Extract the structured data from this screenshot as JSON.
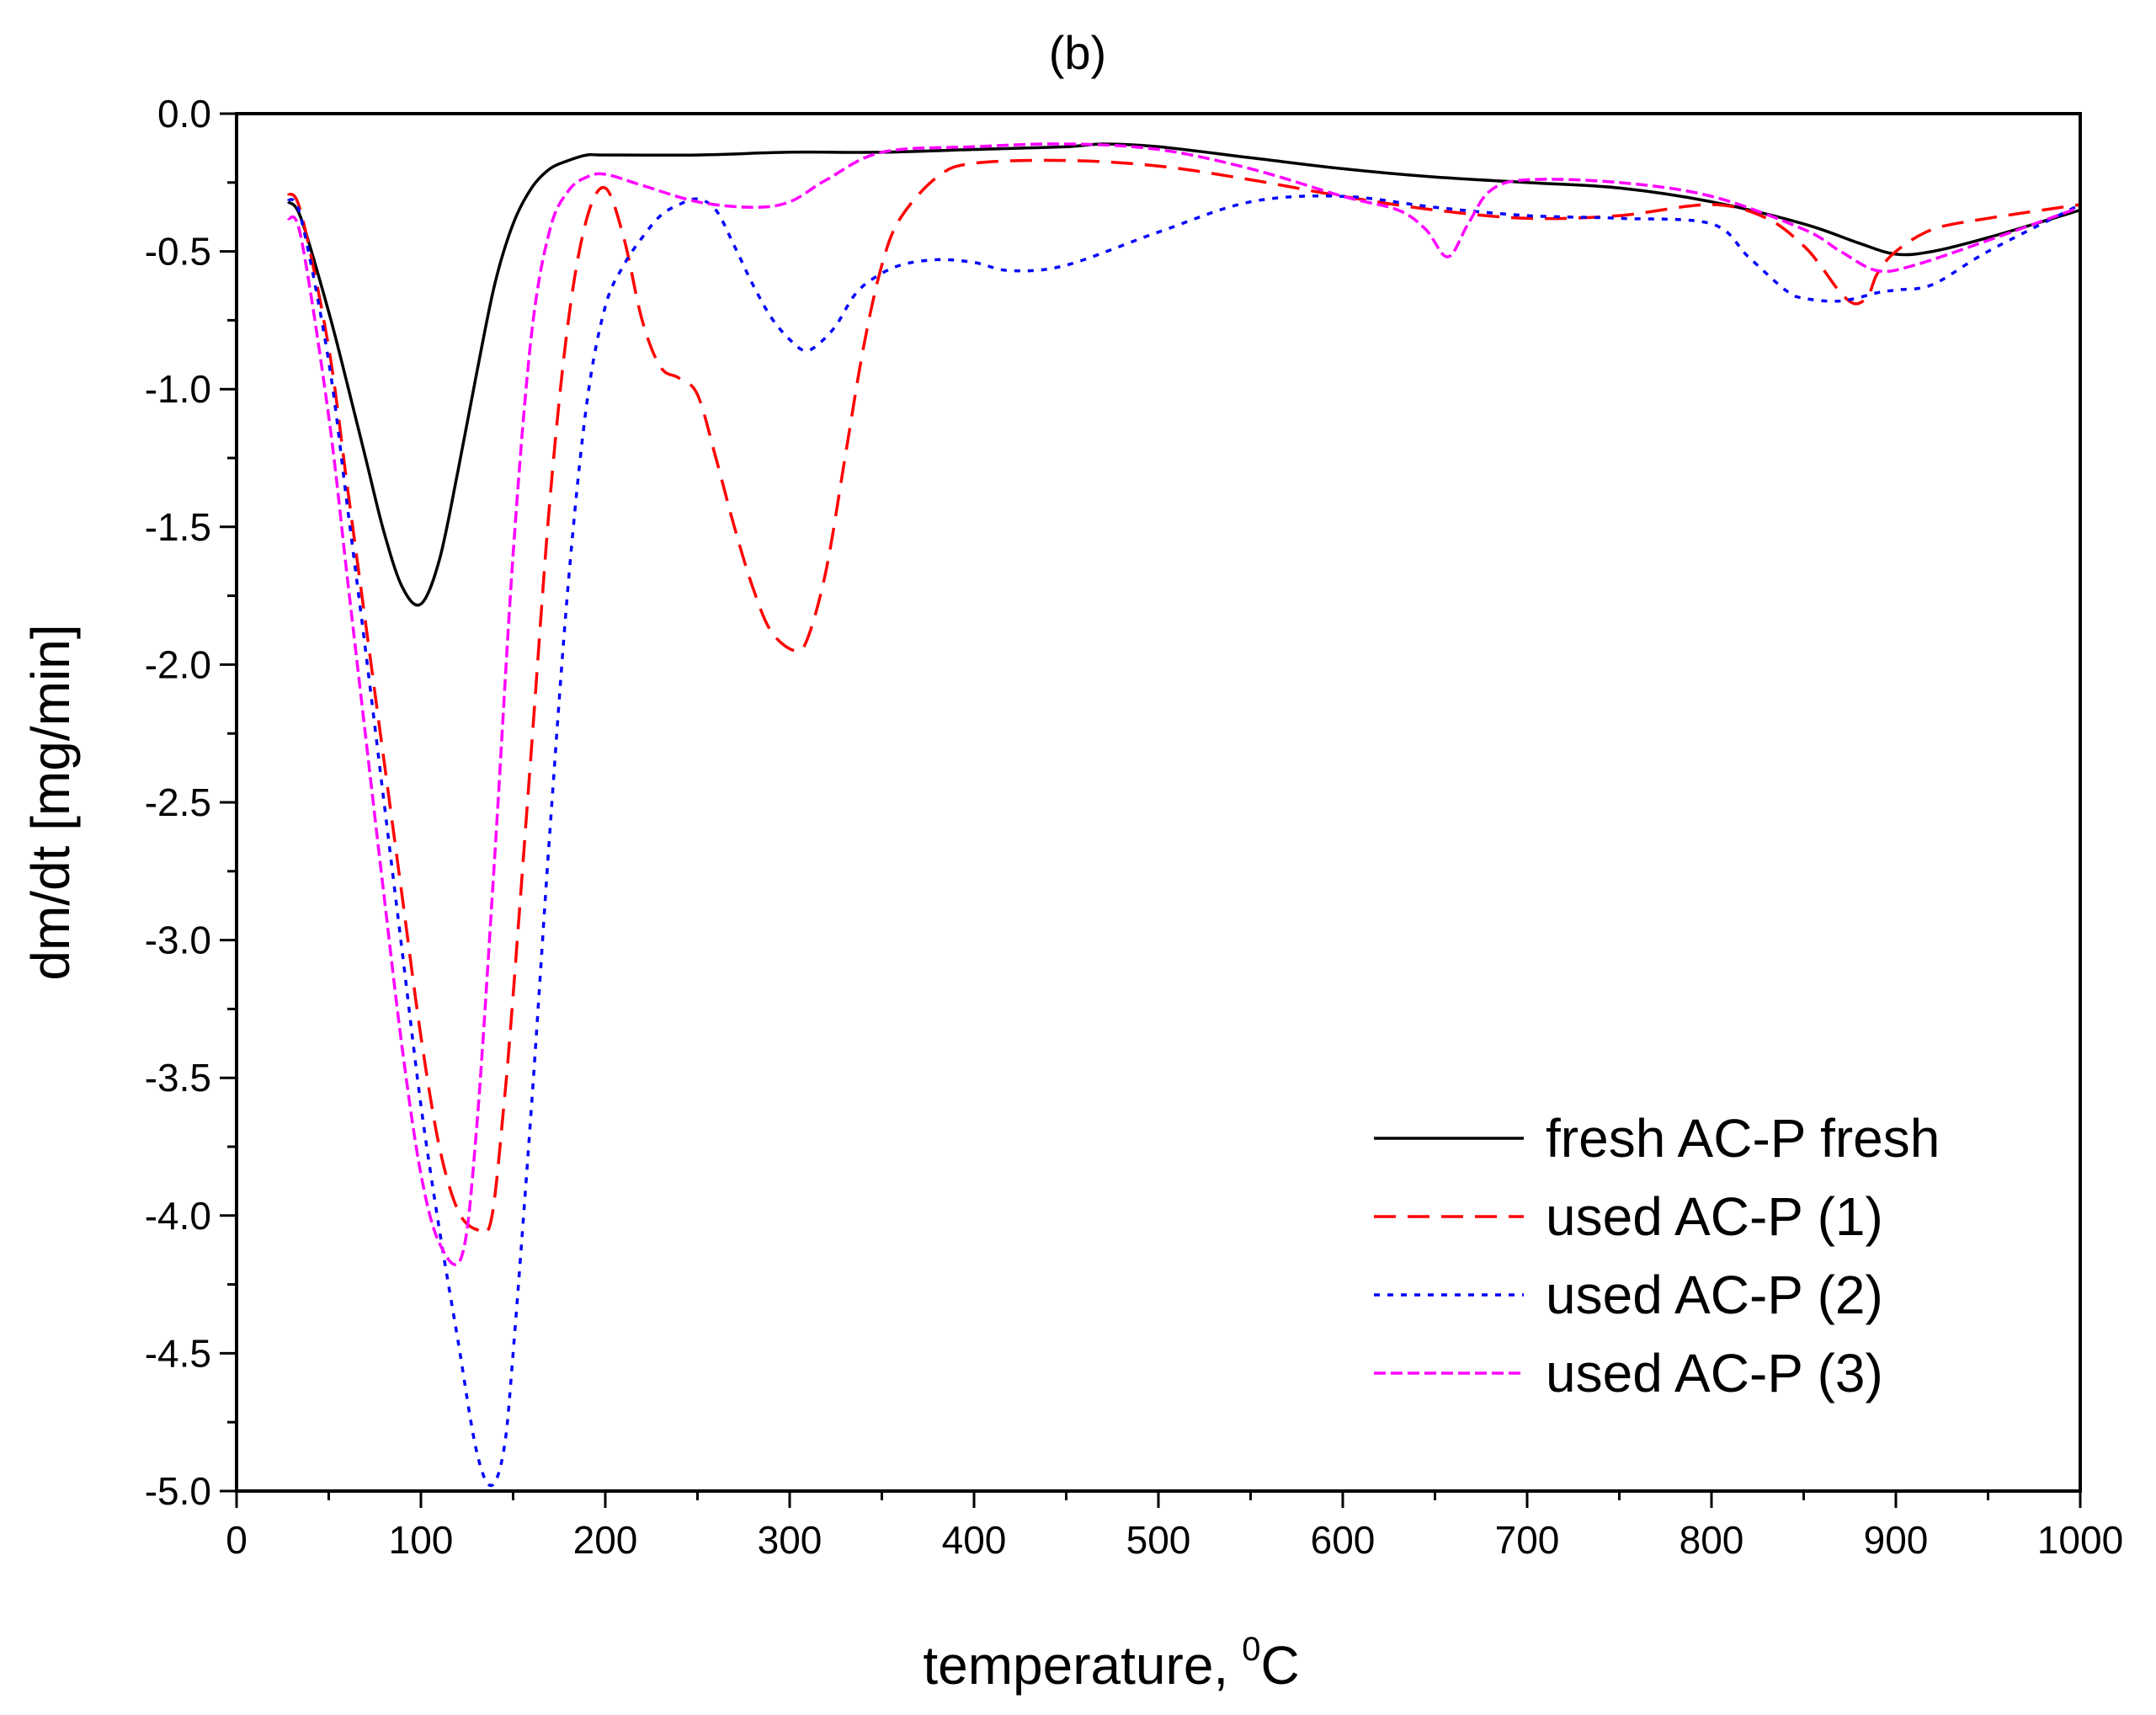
{
  "chart_data": {
    "type": "line",
    "title": "(b)",
    "xlabel": "temperature,",
    "xlabel_sup": "0",
    "xlabel_unit": "C",
    "ylabel": "dm/dt [mg/min]",
    "xlim": [
      0,
      1000
    ],
    "ylim": [
      -5.0,
      0.0
    ],
    "xticks": [
      0,
      100,
      200,
      300,
      400,
      500,
      600,
      700,
      800,
      900,
      1000
    ],
    "xtick_labels": [
      "0",
      "100",
      "200",
      "300",
      "400",
      "500",
      "600",
      "700",
      "800",
      "900",
      "1000"
    ],
    "yticks": [
      0.0,
      -0.5,
      -1.0,
      -1.5,
      -2.0,
      -2.5,
      -3.0,
      -3.5,
      -4.0,
      -4.5,
      -5.0
    ],
    "ytick_labels": [
      "0.0",
      "-0.5",
      "-1.0",
      "-1.5",
      "-2.0",
      "-2.5",
      "-3.0",
      "-3.5",
      "-4.0",
      "-4.5",
      "-5.0"
    ],
    "grid": false,
    "legend_position": "bottom-right",
    "series": [
      {
        "name": "fresh AC-P fresh",
        "color": "#000000",
        "style": "solid",
        "x": [
          28,
          35,
          50,
          60,
          70,
          80,
          90,
          100,
          110,
          120,
          130,
          140,
          150,
          160,
          170,
          180,
          190,
          200,
          250,
          300,
          350,
          400,
          450,
          470,
          500,
          550,
          600,
          650,
          700,
          750,
          800,
          850,
          880,
          900,
          920,
          950,
          1000
        ],
        "y": [
          -0.32,
          -0.38,
          -0.72,
          -0.98,
          -1.25,
          -1.52,
          -1.72,
          -1.78,
          -1.62,
          -1.3,
          -0.95,
          -0.62,
          -0.4,
          -0.27,
          -0.2,
          -0.17,
          -0.15,
          -0.15,
          -0.15,
          -0.14,
          -0.14,
          -0.13,
          -0.12,
          -0.11,
          -0.12,
          -0.16,
          -0.2,
          -0.23,
          -0.25,
          -0.27,
          -0.32,
          -0.4,
          -0.47,
          -0.51,
          -0.5,
          -0.45,
          -0.35
        ]
      },
      {
        "name": "used AC-P (1)",
        "color": "#ff0000",
        "style": "dashed",
        "x": [
          28,
          35,
          50,
          60,
          70,
          80,
          90,
          100,
          110,
          120,
          130,
          138,
          145,
          150,
          160,
          170,
          180,
          190,
          200,
          210,
          220,
          230,
          240,
          250,
          260,
          270,
          280,
          290,
          303,
          310,
          320,
          330,
          340,
          350,
          360,
          380,
          400,
          450,
          500,
          550,
          600,
          650,
          700,
          750,
          800,
          830,
          850,
          860,
          870,
          878,
          885,
          890,
          900,
          920,
          950,
          1000
        ],
        "y": [
          -0.29,
          -0.36,
          -0.85,
          -1.35,
          -1.85,
          -2.35,
          -2.85,
          -3.35,
          -3.75,
          -3.98,
          -4.05,
          -4.02,
          -3.6,
          -3.2,
          -2.3,
          -1.4,
          -0.75,
          -0.38,
          -0.27,
          -0.45,
          -0.75,
          -0.92,
          -0.96,
          -1.02,
          -1.25,
          -1.5,
          -1.72,
          -1.88,
          -1.95,
          -1.9,
          -1.65,
          -1.25,
          -0.85,
          -0.55,
          -0.38,
          -0.23,
          -0.18,
          -0.17,
          -0.19,
          -0.24,
          -0.3,
          -0.35,
          -0.38,
          -0.37,
          -0.33,
          -0.38,
          -0.48,
          -0.56,
          -0.65,
          -0.69,
          -0.66,
          -0.58,
          -0.5,
          -0.42,
          -0.38,
          -0.33
        ]
      },
      {
        "name": "used AC-P (2)",
        "color": "#0000ff",
        "style": "dotted",
        "x": [
          28,
          35,
          50,
          60,
          70,
          80,
          90,
          100,
          110,
          120,
          130,
          138,
          145,
          150,
          160,
          170,
          180,
          190,
          200,
          210,
          220,
          230,
          240,
          250,
          260,
          270,
          280,
          290,
          300,
          308,
          315,
          325,
          335,
          345,
          360,
          380,
          400,
          420,
          450,
          500,
          550,
          600,
          650,
          700,
          750,
          800,
          820,
          840,
          850,
          870,
          890,
          900,
          920,
          950,
          1000
        ],
        "y": [
          -0.31,
          -0.38,
          -0.9,
          -1.42,
          -1.95,
          -2.5,
          -3.05,
          -3.6,
          -4.05,
          -4.45,
          -4.85,
          -4.98,
          -4.85,
          -4.5,
          -3.6,
          -2.6,
          -1.7,
          -1.05,
          -0.7,
          -0.55,
          -0.45,
          -0.37,
          -0.33,
          -0.31,
          -0.35,
          -0.48,
          -0.62,
          -0.74,
          -0.82,
          -0.86,
          -0.84,
          -0.77,
          -0.66,
          -0.6,
          -0.55,
          -0.53,
          -0.54,
          -0.57,
          -0.55,
          -0.43,
          -0.32,
          -0.3,
          -0.34,
          -0.37,
          -0.38,
          -0.4,
          -0.52,
          -0.64,
          -0.67,
          -0.68,
          -0.65,
          -0.64,
          -0.62,
          -0.5,
          -0.33
        ]
      },
      {
        "name": "used AC-P (3)",
        "color": "#ff00ff",
        "style": "short-dashed",
        "x": [
          28,
          35,
          50,
          60,
          70,
          80,
          90,
          100,
          110,
          122,
          130,
          140,
          150,
          160,
          170,
          180,
          190,
          200,
          220,
          250,
          280,
          300,
          320,
          350,
          400,
          450,
          500,
          550,
          600,
          630,
          645,
          657,
          668,
          680,
          700,
          750,
          800,
          850,
          870,
          890,
          910,
          950,
          1000
        ],
        "y": [
          -0.38,
          -0.45,
          -1.1,
          -1.68,
          -2.26,
          -2.84,
          -3.4,
          -3.85,
          -4.1,
          -4.15,
          -3.7,
          -2.7,
          -1.6,
          -0.8,
          -0.42,
          -0.28,
          -0.23,
          -0.22,
          -0.26,
          -0.32,
          -0.34,
          -0.32,
          -0.24,
          -0.14,
          -0.12,
          -0.11,
          -0.13,
          -0.2,
          -0.3,
          -0.35,
          -0.42,
          -0.52,
          -0.4,
          -0.28,
          -0.24,
          -0.25,
          -0.3,
          -0.42,
          -0.5,
          -0.57,
          -0.55,
          -0.46,
          -0.34
        ]
      }
    ]
  }
}
